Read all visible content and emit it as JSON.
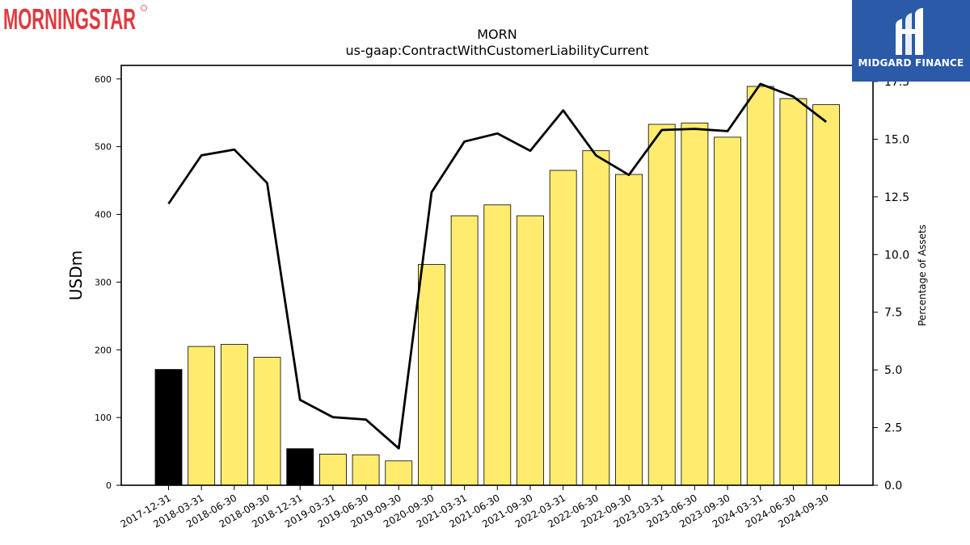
{
  "branding": {
    "left_logo_text": "MORNINGSTAR",
    "right_logo_text": "MIDGARD FINANCE"
  },
  "colors": {
    "bar_fill": "#ffec6e",
    "bar_highlight": "#000000",
    "line": "#000000",
    "logo_red": "#e0393e",
    "logo_blue": "#2b5aa8"
  },
  "chart_data": {
    "type": "bar",
    "title": "MORN",
    "subtitle": "us-gaap:ContractWithCustomerLiabilityCurrent",
    "ylabel": "USDm",
    "y2label": "Percentage of Assets",
    "ylim": [
      0,
      620
    ],
    "y2lim": [
      0,
      18.2
    ],
    "yticks": [
      "0",
      "100",
      "200",
      "300",
      "400",
      "500",
      "600"
    ],
    "y2ticks": [
      "0.0",
      "2.5",
      "5.0",
      "7.5",
      "10.0",
      "12.5",
      "15.0",
      "17.5"
    ],
    "categories": [
      "2017-12-31",
      "2018-03-31",
      "2018-06-30",
      "2018-09-30",
      "2018-12-31",
      "2019-03-31",
      "2019-06-30",
      "2019-09-30",
      "2020-09-30",
      "2021-03-31",
      "2021-06-30",
      "2021-09-30",
      "2022-03-31",
      "2022-06-30",
      "2022-09-30",
      "2023-03-31",
      "2023-06-30",
      "2023-09-30",
      "2024-03-31",
      "2024-06-30",
      "2024-09-30"
    ],
    "series": [
      {
        "type": "bar",
        "values": [
          171,
          205,
          208,
          189,
          54,
          46,
          45,
          36,
          326,
          398,
          414,
          398,
          465,
          494,
          459,
          533,
          535,
          514,
          589,
          571,
          562
        ],
        "highlighted": [
          true,
          false,
          false,
          false,
          true,
          false,
          false,
          false,
          false,
          false,
          false,
          false,
          false,
          false,
          false,
          false,
          false,
          false,
          false,
          false,
          false
        ]
      },
      {
        "type": "line",
        "axis": "right",
        "values": [
          12.2,
          14.3,
          14.55,
          13.1,
          3.7,
          2.95,
          2.85,
          1.6,
          12.7,
          14.9,
          15.25,
          14.5,
          16.25,
          14.3,
          13.45,
          15.4,
          15.45,
          15.35,
          17.4,
          16.85,
          15.75
        ]
      }
    ],
    "grid": false,
    "legend": "none"
  }
}
